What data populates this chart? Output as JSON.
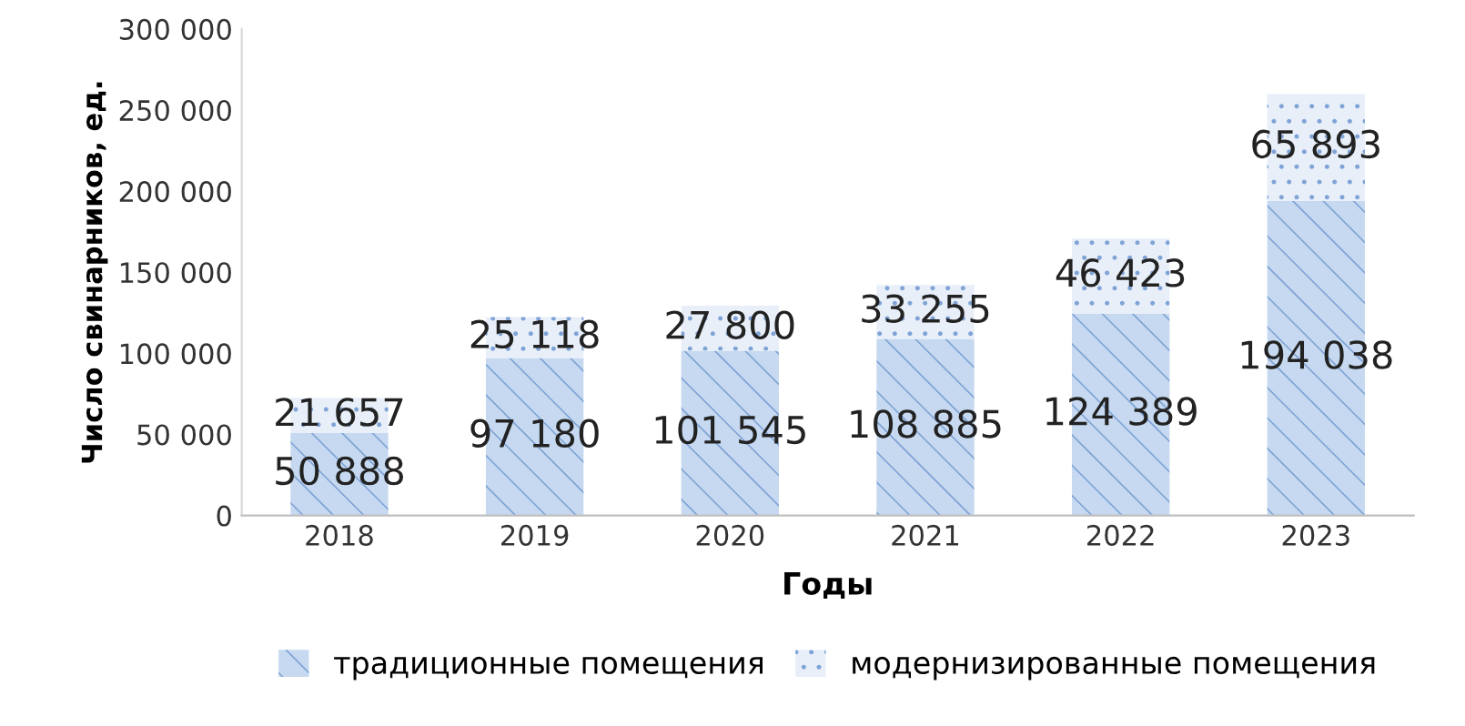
{
  "chart_data": {
    "type": "bar",
    "stacked": true,
    "xlabel": "Годы",
    "ylabel": "Число свинарников, ед.",
    "categories": [
      "2018",
      "2019",
      "2020",
      "2021",
      "2022",
      "2023"
    ],
    "series": [
      {
        "name": "традиционные помещения",
        "color": "#c6d9f0",
        "values": [
          50888,
          97180,
          101545,
          108885,
          124389,
          194038
        ],
        "value_labels": [
          "50 888",
          "97 180",
          "101 545",
          "108 885",
          "124 389",
          "194 038"
        ]
      },
      {
        "name": "модернизированные помещения",
        "color": "#e8eff9",
        "values": [
          21657,
          25118,
          27800,
          33255,
          46423,
          65893
        ],
        "value_labels": [
          "21 657",
          "25 118",
          "27 800",
          "33 255",
          "46 423",
          "65 893"
        ]
      }
    ],
    "ylim": [
      0,
      300000
    ],
    "yticks": [
      0,
      {
        "value": 50000,
        "label": "50 000"
      },
      {
        "value": 100000,
        "label": "100 000"
      },
      {
        "value": 150000,
        "label": "150 000"
      },
      {
        "value": 200000,
        "label": "200 000"
      },
      {
        "value": 250000,
        "label": "250 000"
      },
      {
        "value": 300000,
        "label": "300 000"
      }
    ],
    "grid": false,
    "legend": "bottom"
  }
}
